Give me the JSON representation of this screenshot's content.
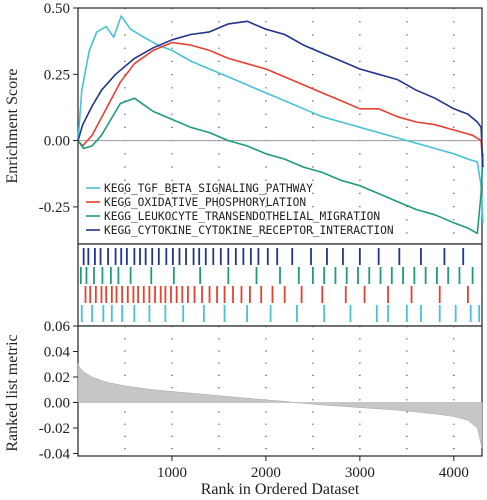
{
  "chart_data": [
    {
      "type": "line",
      "title": "",
      "xlabel": "",
      "ylabel": "Enrichment Score",
      "xlim": [
        0,
        4300
      ],
      "ylim": [
        -0.39,
        0.5
      ],
      "yticks": [
        0.5,
        0.25,
        0.0,
        -0.25
      ],
      "ytick_labels": [
        "0.50",
        "0.25",
        "0.00",
        "-0.25"
      ],
      "grid": "dotted",
      "legend": "bottom-left",
      "series": [
        {
          "name": "KEGG_TGF_BETA_SIGNALING_PATHWAY",
          "color": "#48c2d6",
          "x": [
            0,
            40,
            120,
            200,
            300,
            380,
            460,
            560,
            700,
            850,
            1000,
            1200,
            1400,
            1600,
            1800,
            2000,
            2200,
            2400,
            2600,
            2800,
            3000,
            3200,
            3400,
            3600,
            3800,
            4000,
            4150,
            4250,
            4290,
            4310
          ],
          "y": [
            0.0,
            0.19,
            0.34,
            0.41,
            0.43,
            0.39,
            0.47,
            0.42,
            0.39,
            0.36,
            0.34,
            0.3,
            0.27,
            0.24,
            0.21,
            0.18,
            0.15,
            0.12,
            0.09,
            0.07,
            0.05,
            0.03,
            0.01,
            -0.01,
            -0.03,
            -0.05,
            -0.07,
            -0.08,
            -0.17,
            -0.31
          ]
        },
        {
          "name": "KEGG_OXIDATIVE_PHOSPHORYLATION",
          "color": "#e8402e",
          "x": [
            0,
            50,
            150,
            300,
            450,
            600,
            800,
            1000,
            1200,
            1400,
            1600,
            1800,
            2000,
            2200,
            2400,
            2600,
            2800,
            3000,
            3200,
            3400,
            3600,
            3800,
            4000,
            4100,
            4200,
            4290,
            4310
          ],
          "y": [
            0.0,
            -0.02,
            0.02,
            0.12,
            0.22,
            0.29,
            0.34,
            0.37,
            0.36,
            0.34,
            0.31,
            0.29,
            0.27,
            0.24,
            0.21,
            0.18,
            0.15,
            0.12,
            0.12,
            0.09,
            0.07,
            0.06,
            0.04,
            0.03,
            0.02,
            0.0,
            -0.1
          ]
        },
        {
          "name": "KEGG_LEUKOCYTE_TRANSENDOTHELIAL_MIGRATION",
          "color": "#1f9b7c",
          "x": [
            0,
            60,
            150,
            250,
            350,
            450,
            600,
            800,
            1000,
            1200,
            1400,
            1600,
            1800,
            2000,
            2200,
            2400,
            2600,
            2800,
            3000,
            3200,
            3400,
            3600,
            3800,
            4000,
            4150,
            4250,
            4290,
            4310
          ],
          "y": [
            0.0,
            -0.03,
            -0.02,
            0.02,
            0.08,
            0.14,
            0.16,
            0.11,
            0.08,
            0.05,
            0.03,
            0.0,
            -0.02,
            -0.05,
            -0.07,
            -0.1,
            -0.12,
            -0.15,
            -0.17,
            -0.2,
            -0.23,
            -0.26,
            -0.28,
            -0.31,
            -0.33,
            -0.35,
            -0.2,
            -0.05
          ]
        },
        {
          "name": "KEGG_CYTOKINE_CYTOKINE_RECEPTOR_INTERACTION",
          "color": "#22358c",
          "x": [
            0,
            50,
            150,
            250,
            400,
            600,
            800,
            1000,
            1200,
            1400,
            1600,
            1800,
            2000,
            2200,
            2400,
            2600,
            2800,
            3000,
            3200,
            3400,
            3600,
            3800,
            4000,
            4150,
            4250,
            4290,
            4310
          ],
          "y": [
            0.0,
            0.06,
            0.13,
            0.19,
            0.25,
            0.31,
            0.35,
            0.38,
            0.4,
            0.41,
            0.44,
            0.45,
            0.42,
            0.4,
            0.36,
            0.33,
            0.3,
            0.27,
            0.25,
            0.23,
            0.19,
            0.16,
            0.12,
            0.1,
            0.07,
            0.05,
            -0.1
          ]
        }
      ]
    },
    {
      "type": "barcode",
      "xlim": [
        0,
        4300
      ],
      "rows": [
        {
          "name": "KEGG_CYTOKINE_CYTOKINE_RECEPTOR_INTERACTION",
          "color": "#22358c",
          "hits": [
            60,
            110,
            180,
            240,
            320,
            400,
            460,
            520,
            600,
            660,
            720,
            790,
            860,
            940,
            1010,
            1080,
            1150,
            1230,
            1290,
            1360,
            1440,
            1520,
            1600,
            1680,
            1760,
            1840,
            1920,
            2020,
            2120,
            2280,
            2480,
            2650,
            2820,
            3000,
            3200,
            3420,
            3650,
            3900,
            4100
          ]
        },
        {
          "name": "KEGG_LEUKOCYTE_TRANSENDOTHELIAL_MIGRATION",
          "color": "#1f9b7c",
          "hits": [
            30,
            90,
            170,
            260,
            350,
            430,
            560,
            780,
            1020,
            1300,
            1600,
            1900,
            2150,
            2350,
            2500,
            2620,
            2740,
            2860,
            2980,
            3100,
            3220,
            3340,
            3460,
            3580,
            3700,
            3820,
            3940,
            4060,
            4200
          ]
        },
        {
          "name": "KEGG_OXIDATIVE_PHOSPHORYLATION",
          "color": "#e8402e",
          "hits": [
            80,
            130,
            190,
            250,
            300,
            360,
            410,
            470,
            530,
            590,
            640,
            700,
            760,
            820,
            880,
            930,
            990,
            1050,
            1110,
            1170,
            1240,
            1320,
            1400,
            1480,
            1560,
            1650,
            1740,
            1830,
            1950,
            2070,
            2200,
            2380,
            2600,
            2850,
            3050,
            3300,
            3550,
            3850,
            4150
          ]
        },
        {
          "name": "KEGG_TGF_BETA_SIGNALING_PATHWAY",
          "color": "#48c2d6",
          "hits": [
            40,
            150,
            270,
            360,
            470,
            600,
            760,
            930,
            1120,
            1340,
            1560,
            1800,
            2050,
            2330,
            2620,
            2900,
            3180,
            3300,
            3500,
            3650,
            3850,
            4020,
            4180,
            4270
          ]
        }
      ]
    },
    {
      "type": "area",
      "title": "",
      "xlabel": "Rank in Ordered Dataset",
      "ylabel": "Ranked list metric",
      "xlim": [
        0,
        4300
      ],
      "ylim": [
        -0.042,
        0.06
      ],
      "xticks": [
        1000,
        2000,
        3000,
        4000
      ],
      "xtick_labels": [
        "1000",
        "2000",
        "3000",
        "4000"
      ],
      "yticks": [
        0.06,
        0.04,
        0.02,
        0.0,
        -0.02,
        -0.04
      ],
      "ytick_labels": [
        "0.06",
        "0.04",
        "0.02",
        "0.00",
        "-0.02",
        "-0.04"
      ],
      "fill_color": "#c6c6c6",
      "x": [
        0,
        20,
        60,
        150,
        300,
        500,
        800,
        1100,
        1400,
        1700,
        2000,
        2200,
        2300,
        2600,
        3000,
        3400,
        3800,
        4000,
        4150,
        4250,
        4300
      ],
      "y": [
        0.031,
        0.027,
        0.024,
        0.02,
        0.016,
        0.013,
        0.01,
        0.008,
        0.006,
        0.004,
        0.002,
        0.001,
        0.0,
        -0.002,
        -0.004,
        -0.006,
        -0.009,
        -0.011,
        -0.014,
        -0.02,
        -0.036
      ]
    }
  ]
}
